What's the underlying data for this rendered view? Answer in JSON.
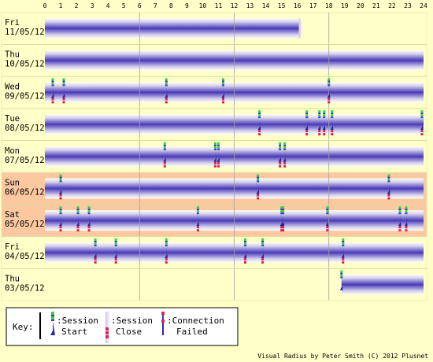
{
  "chart_data": {
    "type": "timeline",
    "x_ticks": [
      "0",
      "1",
      "2",
      "3",
      "4",
      "5",
      "6",
      "7",
      "8",
      "9",
      "10",
      "11",
      "12",
      "13",
      "14",
      "15",
      "16",
      "17",
      "18",
      "19",
      "20",
      "21",
      "22",
      "23",
      "24"
    ],
    "xlim": [
      0,
      24
    ],
    "grid_lines_at_hours": [
      6,
      12,
      18
    ],
    "days": [
      {
        "day": "Fri",
        "date": "11/05/12",
        "weekend": false,
        "sessions": [
          [
            0,
            16.1
          ]
        ],
        "starts": [],
        "closes": []
      },
      {
        "day": "Thu",
        "date": "10/05/12",
        "weekend": false,
        "sessions": [
          [
            0,
            24
          ]
        ],
        "starts": [],
        "closes": []
      },
      {
        "day": "Wed",
        "date": "09/05/12",
        "weekend": false,
        "sessions": [
          [
            0,
            24
          ]
        ],
        "starts": [
          0.5,
          1.2,
          7.7,
          11.3,
          18
        ],
        "closes": [
          0.5,
          1.2,
          7.7,
          11.3,
          18
        ]
      },
      {
        "day": "Tue",
        "date": "08/05/12",
        "weekend": false,
        "sessions": [
          [
            0,
            24
          ]
        ],
        "starts": [
          13.6,
          16.6,
          17.4,
          17.7,
          18.2,
          23.9
        ],
        "closes": [
          13.6,
          16.6,
          17.4,
          17.7,
          18.2,
          23.9
        ]
      },
      {
        "day": "Mon",
        "date": "07/05/12",
        "weekend": false,
        "sessions": [
          [
            0,
            24
          ]
        ],
        "starts": [
          7.6,
          10.8,
          11,
          14.9,
          15.2
        ],
        "closes": [
          7.6,
          10.8,
          11,
          14.9,
          15.2
        ]
      },
      {
        "day": "Sun",
        "date": "06/05/12",
        "weekend": true,
        "sessions": [
          [
            0,
            24
          ]
        ],
        "starts": [
          1,
          13.5,
          21.8
        ],
        "closes": [
          1,
          13.5,
          21.8
        ]
      },
      {
        "day": "Sat",
        "date": "05/05/12",
        "weekend": true,
        "sessions": [
          [
            0,
            24
          ]
        ],
        "starts": [
          1,
          2.1,
          2.8,
          9.7,
          15,
          15.1,
          17.9,
          22.5,
          22.9
        ],
        "closes": [
          1,
          2.1,
          2.8,
          9.7,
          15,
          15.1,
          17.9,
          22.5,
          22.9
        ]
      },
      {
        "day": "Fri",
        "date": "04/05/12",
        "weekend": false,
        "sessions": [
          [
            0,
            24
          ]
        ],
        "starts": [
          3.2,
          4.5,
          7.7,
          12.7,
          13.8,
          18.9
        ],
        "closes": [
          3.2,
          4.5,
          7.7,
          12.7,
          13.8,
          18.9
        ]
      },
      {
        "day": "Thu",
        "date": "03/05/12",
        "weekend": false,
        "sessions": [
          [
            18.8,
            24
          ]
        ],
        "starts": [
          18.8
        ],
        "closes": []
      }
    ]
  },
  "key": {
    "label": "Key:",
    "session_start": ":Session Start",
    "session_start_l1": ":Session",
    "session_start_l2": "Start",
    "session_close_l1": ":Session",
    "session_close_l2": "Close",
    "connection_failed_l1": ":Connection",
    "connection_failed_l2": "Failed"
  },
  "footer": "Visual Radius by Peter Smith (C) 2012 Plusnet",
  "colors": {
    "background": "#ffffc8",
    "weekend": "#fcc8a0",
    "bar_edge": "#fffff0",
    "bar_center": "#4a3ab8",
    "start_marker": "#3ad04a",
    "close_marker": "#d8284a",
    "grid": "#a0a0a0"
  }
}
